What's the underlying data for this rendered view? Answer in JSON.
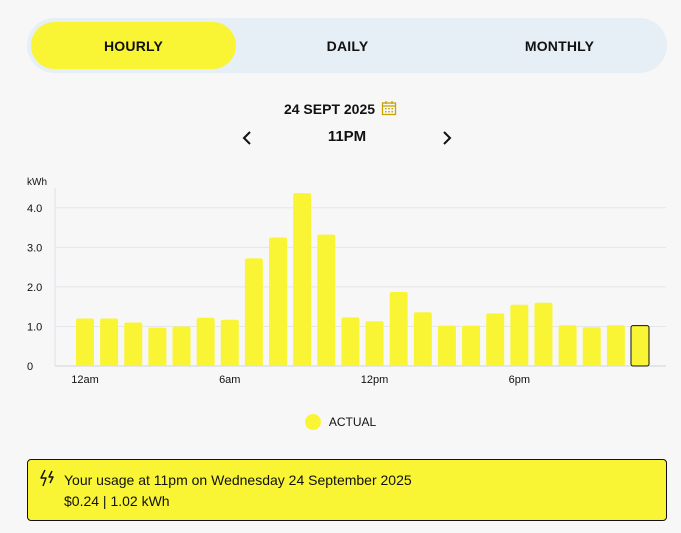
{
  "tabs": [
    {
      "label": "HOURLY",
      "active": true
    },
    {
      "label": "DAILY",
      "active": false
    },
    {
      "label": "MONTHLY",
      "active": false
    }
  ],
  "date_label": "24 SEPT 2025",
  "time_label": "11PM",
  "colors": {
    "accent": "#f9f535",
    "tab_bg": "#e6eef6",
    "grid": "#e3e6ea"
  },
  "icons": {
    "calendar": "calendar-icon",
    "prev": "chevron-left-icon",
    "next": "chevron-right-icon",
    "usage": "lightning-icon"
  },
  "chart_data": {
    "type": "bar",
    "ylabel": "kWh",
    "ylim": [
      0,
      4.5
    ],
    "yticks": [
      "0",
      "1.0",
      "2.0",
      "3.0",
      "4.0"
    ],
    "x_tick_labels": [
      "12am",
      "6am",
      "12pm",
      "6pm"
    ],
    "categories": [
      "12am",
      "1am",
      "2am",
      "3am",
      "4am",
      "5am",
      "6am",
      "7am",
      "8am",
      "9am",
      "10am",
      "11am",
      "12pm",
      "1pm",
      "2pm",
      "3pm",
      "4pm",
      "5pm",
      "6pm",
      "7pm",
      "8pm",
      "9pm",
      "10pm",
      "11pm"
    ],
    "values": [
      1.2,
      1.2,
      1.1,
      0.97,
      1.0,
      1.22,
      1.17,
      2.72,
      3.25,
      4.37,
      3.32,
      1.23,
      1.13,
      1.87,
      1.36,
      1.02,
      1.02,
      1.33,
      1.55,
      1.6,
      1.03,
      0.98,
      1.03,
      1.02
    ],
    "selected_index": 23,
    "grid": true,
    "legend": "bottom-center",
    "series": [
      {
        "name": "ACTUAL",
        "color": "#f9f535"
      }
    ]
  },
  "legend_label": "ACTUAL",
  "info": {
    "line1": "Your usage at 11pm on Wednesday 24 September 2025",
    "line2": "$0.24 | 1.02 kWh"
  }
}
